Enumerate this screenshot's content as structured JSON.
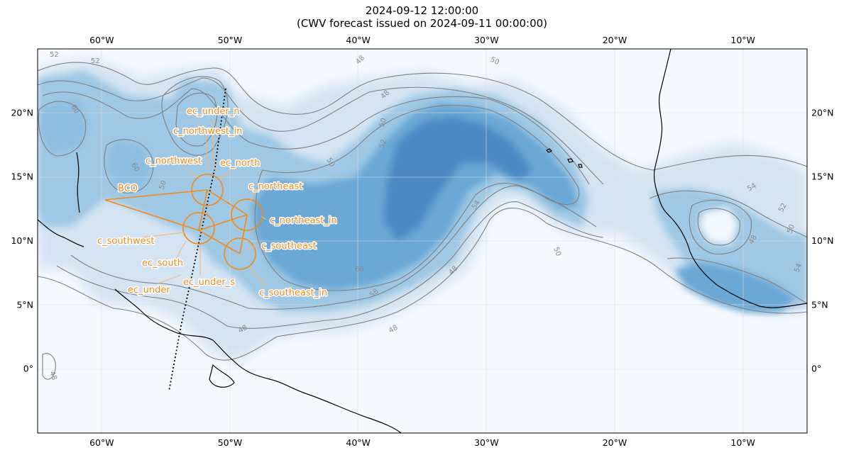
{
  "title": {
    "line1": "2024-09-12 12:00:00",
    "line2": "(CWV forecast issued on 2024-09-11 00:00:00)"
  },
  "map": {
    "lon_range": [
      -65,
      -5
    ],
    "lat_range": [
      -5,
      25
    ],
    "lon_ticks": [
      {
        "value": -60,
        "label": "60°W"
      },
      {
        "value": -50,
        "label": "50°W"
      },
      {
        "value": -40,
        "label": "40°W"
      },
      {
        "value": -30,
        "label": "30°W"
      },
      {
        "value": -20,
        "label": "20°W"
      },
      {
        "value": -10,
        "label": "10°W"
      }
    ],
    "lat_ticks": [
      {
        "value": 0,
        "label": "0°"
      },
      {
        "value": 5,
        "label": "5°N"
      },
      {
        "value": 10,
        "label": "10°N"
      },
      {
        "value": 15,
        "label": "15°N"
      },
      {
        "value": 20,
        "label": "20°N"
      }
    ],
    "gridlines": true,
    "contour_labels": [
      "48",
      "50",
      "52",
      "54",
      "58",
      "60"
    ],
    "colors": {
      "background": "#f5f9fe",
      "cwv_light": "#c6dbef",
      "cwv_mid": "#6baed6",
      "cwv_dark": "#3a7bbf",
      "contour": "#808080",
      "coastline": "#000000",
      "flight_track": "#f28a1c",
      "grid": "#e0e0e0"
    }
  },
  "sites": {
    "bco": "BCO",
    "ec_under_n": "ec_under_n",
    "c_northwest_in": "c_northwest_in",
    "c_northwest": "c_northwest",
    "ec_north": "ec_north",
    "c_northeast": "c_northeast",
    "c_northeast_in": "c_northeast_in",
    "c_southwest": "c_southwest",
    "c_southeast": "c_southeast",
    "ec_south": "ec_south",
    "ec_under_s": "ec_under_s",
    "ec_under": "ec_under",
    "c_southeast_in": "c_southeast_in"
  }
}
